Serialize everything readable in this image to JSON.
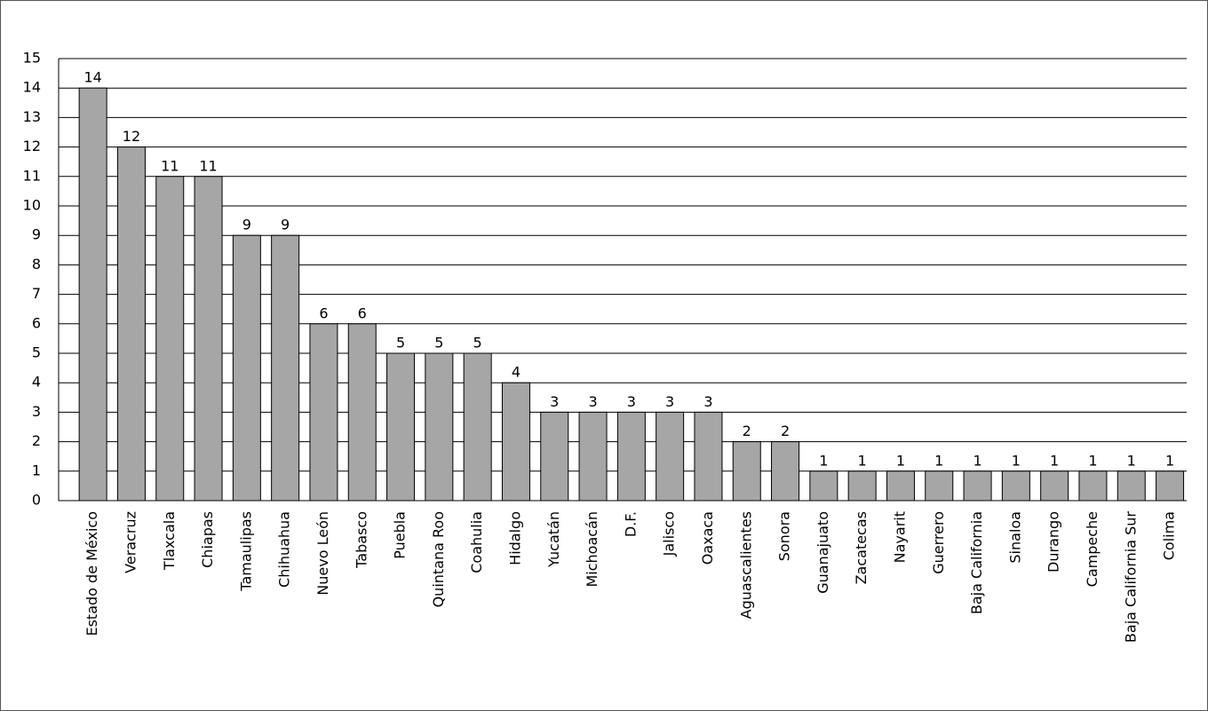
{
  "chart_data": {
    "type": "bar",
    "categories": [
      "Estado de México",
      "Veracruz",
      "Tlaxcala",
      "Chiapas",
      "Tamaulipas",
      "Chihuahua",
      "Nuevo León",
      "Tabasco",
      "Puebla",
      "Quintana Roo",
      "Coahulia",
      "Hidalgo",
      "Yucatán",
      "Michoacán",
      "D.F.",
      "Jalisco",
      "Oaxaca",
      "Aguascalientes",
      "Sonora",
      "Guanajuato",
      "Zacatecas",
      "Nayarit",
      "Guerrero",
      "Baja California",
      "Sinaloa",
      "Durango",
      "Campeche",
      "Baja California Sur",
      "Colima"
    ],
    "values": [
      14,
      12,
      11,
      11,
      9,
      9,
      6,
      6,
      5,
      5,
      5,
      4,
      3,
      3,
      3,
      3,
      3,
      2,
      2,
      1,
      1,
      1,
      1,
      1,
      1,
      1,
      1,
      1,
      1
    ],
    "color": "#a6a6a6",
    "ylim": [
      0,
      15
    ],
    "yticks": [
      0,
      1,
      2,
      3,
      4,
      5,
      6,
      7,
      8,
      9,
      10,
      11,
      12,
      13,
      14,
      15
    ],
    "grid": true
  }
}
